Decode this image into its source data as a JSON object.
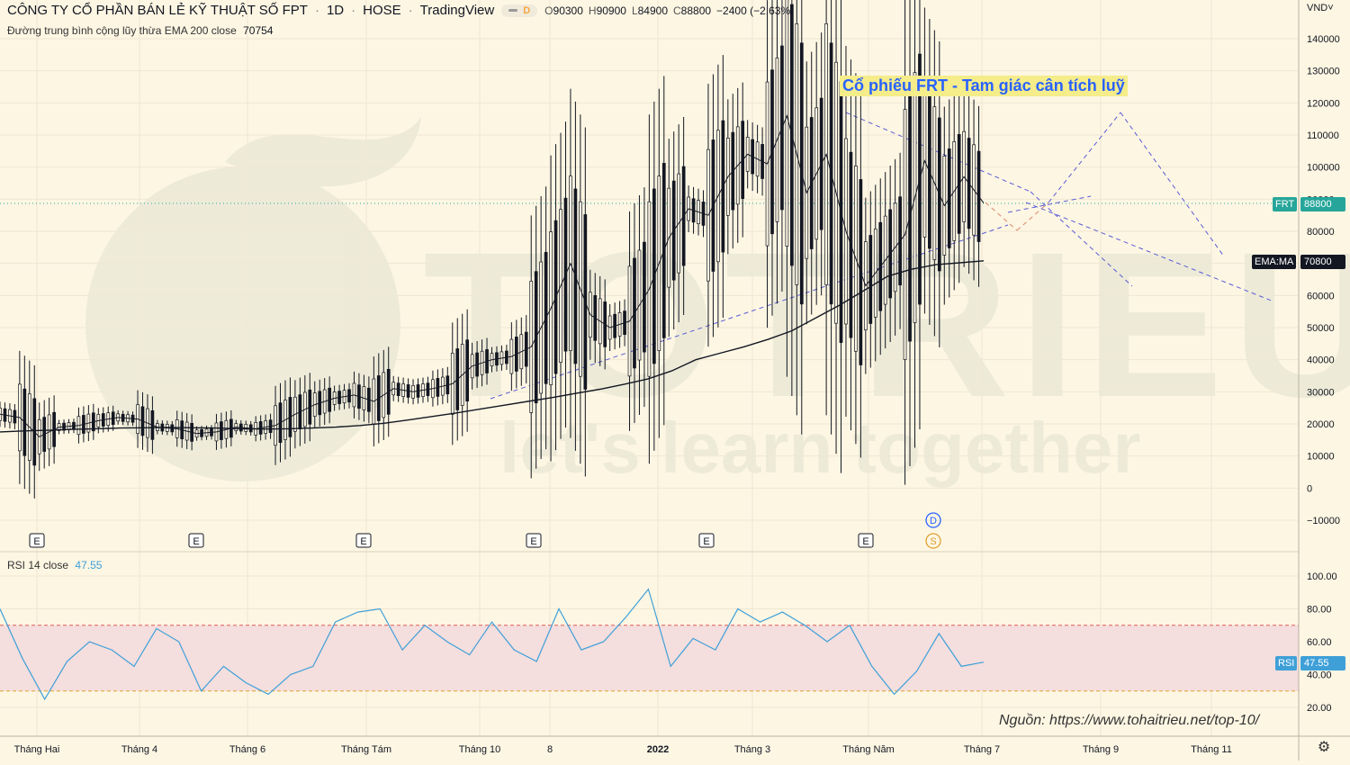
{
  "header": {
    "title": "CÔNG TY CỔ PHẦN BÁN LẺ KỸ THUẬT SỐ FPT",
    "interval": "1D",
    "exchange": "HOSE",
    "source": "TradingView",
    "badge": "D",
    "open_label": "O",
    "open": "90300",
    "high_label": "H",
    "high": "90900",
    "low_label": "L",
    "low": "84900",
    "close_label": "C",
    "close": "88800",
    "change": "−2400 (−2.63%)"
  },
  "currency": "VND",
  "ema_legend": {
    "label": "Đường trung bình cộng lũy thừa EMA 200 close",
    "value": "70754"
  },
  "rsi_legend": {
    "label": "RSI 14 close",
    "value": "47.55"
  },
  "tags": {
    "frt_symbol": "FRT",
    "frt_value": "88800",
    "ema_symbol": "EMA:MA",
    "ema_value": "70800",
    "rsi_symbol": "RSI",
    "rsi_value": "47.55"
  },
  "annotation": "Cổ phiếu FRT - Tam giác cân tích luỹ",
  "source_note": "Nguồn: https://www.tohaitrieu.net/top-10/",
  "watermark": {
    "brand": "TOTRIEU",
    "slogan": "let's learn together"
  },
  "event_markers": {
    "earnings": "E",
    "dividend": "D",
    "split": "S"
  },
  "colors": {
    "background": "#fdf6e3",
    "candle": "#131722",
    "trend": "#5b5bd6",
    "rsi": "#3fa0d8",
    "rsi_band": "#f4dede",
    "last_price": "#26a69a"
  },
  "icons": {
    "settings": "gear-icon",
    "currency_dropdown": "chevron-down-icon"
  },
  "chart_data": [
    {
      "type": "line",
      "title": "CÔNG TY CỔ PHẦN BÁN LẺ KỸ THUẬT SỐ FPT",
      "ylim": [
        -15000,
        145000
      ],
      "y_ticks": [
        -10000,
        0,
        10000,
        20000,
        30000,
        40000,
        50000,
        60000,
        70000,
        80000,
        90000,
        100000,
        110000,
        120000,
        130000,
        140000
      ],
      "x_tick_labels": [
        "Tháng Hai",
        "Tháng 4",
        "Tháng 6",
        "Tháng Tám",
        "Tháng 10",
        "8",
        "2022",
        "Tháng 3",
        "Tháng Năm",
        "Tháng 7",
        "Tháng 9",
        "Tháng 11"
      ],
      "grid": true,
      "series": [
        {
          "name": "FRT",
          "values": [
            23000,
            22000,
            16000,
            19000,
            19500,
            21000,
            22000,
            21500,
            19000,
            18500,
            17000,
            17500,
            19000,
            18500,
            19500,
            23000,
            26000,
            28000,
            29000,
            27000,
            31000,
            30000,
            31000,
            32500,
            38000,
            40000,
            41000,
            44000,
            56000,
            70000,
            54000,
            50000,
            52000,
            62000,
            78000,
            87000,
            85000,
            97000,
            104000,
            101000,
            116000,
            92000,
            104000,
            80000,
            63000,
            71000,
            79000,
            102000,
            88000,
            97000,
            88800
          ]
        },
        {
          "name": "EMA 200",
          "values": [
            17500,
            17800,
            18000,
            18300,
            18500,
            18700,
            18800,
            18900,
            18800,
            18700,
            18500,
            18400,
            18500,
            18700,
            19000,
            19500,
            20200,
            21200,
            22300,
            23400,
            24600,
            25800,
            27000,
            28200,
            29500,
            30800,
            32300,
            34000,
            36500,
            40000,
            42000,
            44000,
            46300,
            49000,
            53000,
            57000,
            61500,
            66000,
            68200,
            69600,
            70200,
            70800
          ]
        }
      ]
    },
    {
      "type": "line",
      "title": "RSI 14 close",
      "ylim": [
        10,
        105
      ],
      "y_ticks": [
        20,
        40,
        60,
        80,
        100
      ],
      "bands": [
        30,
        70
      ],
      "series": [
        {
          "name": "RSI",
          "values": [
            80,
            50,
            25,
            48,
            60,
            55,
            45,
            68,
            60,
            30,
            45,
            35,
            28,
            40,
            45,
            72,
            78,
            80,
            55,
            70,
            60,
            52,
            72,
            55,
            48,
            80,
            55,
            60,
            75,
            92,
            45,
            62,
            55,
            80,
            72,
            78,
            70,
            60,
            70,
            45,
            28,
            42,
            65,
            45,
            47.55
          ]
        }
      ]
    }
  ]
}
